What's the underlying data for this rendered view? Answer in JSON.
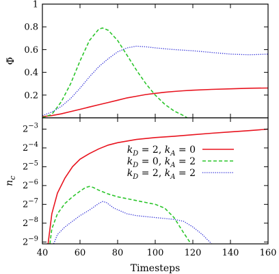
{
  "chart_data": [
    {
      "type": "line",
      "panel": "top",
      "ylabel": "Φ̄",
      "xlim": [
        40,
        160
      ],
      "ylim": [
        0,
        1
      ],
      "yticks": [
        {
          "value": 0.2,
          "label": "0.2"
        },
        {
          "value": 0.4,
          "label": "0.4"
        },
        {
          "value": 0.6,
          "label": "0.6"
        },
        {
          "value": 0.8,
          "label": "0.8"
        },
        {
          "value": 1.0,
          "label": "1"
        }
      ],
      "grid": false,
      "series": [
        {
          "color": "#e8121d",
          "style": "solid",
          "points": [
            [
              40,
              0.01
            ],
            [
              45,
              0.02
            ],
            [
              50,
              0.035
            ],
            [
              55,
              0.055
            ],
            [
              60,
              0.075
            ],
            [
              65,
              0.095
            ],
            [
              70,
              0.115
            ],
            [
              75,
              0.135
            ],
            [
              80,
              0.155
            ],
            [
              85,
              0.175
            ],
            [
              90,
              0.19
            ],
            [
              95,
              0.205
            ],
            [
              100,
              0.215
            ],
            [
              105,
              0.225
            ],
            [
              110,
              0.232
            ],
            [
              115,
              0.238
            ],
            [
              120,
              0.243
            ],
            [
              130,
              0.25
            ],
            [
              140,
              0.255
            ],
            [
              150,
              0.26
            ],
            [
              160,
              0.262
            ]
          ]
        },
        {
          "color": "#2ac52a",
          "style": "dashed",
          "points": [
            [
              40,
              0.0
            ],
            [
              45,
              0.03
            ],
            [
              50,
              0.14
            ],
            [
              55,
              0.3
            ],
            [
              60,
              0.5
            ],
            [
              65,
              0.68
            ],
            [
              70,
              0.78
            ],
            [
              72,
              0.79
            ],
            [
              75,
              0.77
            ],
            [
              80,
              0.68
            ],
            [
              85,
              0.55
            ],
            [
              90,
              0.42
            ],
            [
              95,
              0.3
            ],
            [
              100,
              0.2
            ],
            [
              105,
              0.12
            ],
            [
              110,
              0.06
            ],
            [
              115,
              0.02
            ],
            [
              117,
              0.0
            ]
          ]
        },
        {
          "color": "#2b2bd6",
          "style": "dotted",
          "points": [
            [
              40,
              0.02
            ],
            [
              45,
              0.05
            ],
            [
              50,
              0.1
            ],
            [
              55,
              0.17
            ],
            [
              60,
              0.26
            ],
            [
              65,
              0.36
            ],
            [
              70,
              0.45
            ],
            [
              75,
              0.52
            ],
            [
              80,
              0.58
            ],
            [
              85,
              0.615
            ],
            [
              90,
              0.63
            ],
            [
              95,
              0.625
            ],
            [
              100,
              0.615
            ],
            [
              110,
              0.6
            ],
            [
              120,
              0.59
            ],
            [
              130,
              0.575
            ],
            [
              140,
              0.56
            ],
            [
              150,
              0.555
            ],
            [
              160,
              0.56
            ]
          ]
        }
      ]
    },
    {
      "type": "line",
      "panel": "bottom",
      "ylabel": "n",
      "ylabel_sub": "c",
      "xlabel": "Timesteps",
      "xlim": [
        40,
        160
      ],
      "xticks": [
        40,
        60,
        80,
        100,
        120,
        140,
        160
      ],
      "ylim_exp": [
        -9.1,
        -2.4
      ],
      "yscale": "log2",
      "yticks": [
        {
          "exp": -3,
          "base": "2",
          "sup": "−3"
        },
        {
          "exp": -4,
          "base": "2",
          "sup": "−4"
        },
        {
          "exp": -5,
          "base": "2",
          "sup": "−5"
        },
        {
          "exp": -6,
          "base": "2",
          "sup": "−6"
        },
        {
          "exp": -7,
          "base": "2",
          "sup": "−7"
        },
        {
          "exp": -8,
          "base": "2",
          "sup": "−8"
        },
        {
          "exp": -9,
          "base": "2",
          "sup": "−9"
        }
      ],
      "grid": false,
      "legend_position": "top-right",
      "legend": [
        {
          "label": "k_D = 2, k_A = 0",
          "parts": [
            [
              "k",
              "D"
            ],
            [
              " = 2, "
            ],
            [
              "k",
              "A"
            ],
            [
              " = 0"
            ]
          ],
          "color": "#e8121d",
          "style": "solid"
        },
        {
          "label": "k_D = 0, k_A = 2",
          "parts": [
            [
              "k",
              "D"
            ],
            [
              " = 0, "
            ],
            [
              "k",
              "A"
            ],
            [
              " = 2"
            ]
          ],
          "color": "#2ac52a",
          "style": "dashed"
        },
        {
          "label": "k_D = 2, k_A = 2",
          "parts": [
            [
              "k",
              "D"
            ],
            [
              " = 2, "
            ],
            [
              "k",
              "A"
            ],
            [
              " = 2"
            ]
          ],
          "color": "#2b2bd6",
          "style": "dotted"
        }
      ],
      "series": [
        {
          "color": "#e8121d",
          "style": "solid",
          "points": [
            [
              43,
              -9.1
            ],
            [
              45,
              -7.5
            ],
            [
              48,
              -6.4
            ],
            [
              52,
              -5.6
            ],
            [
              56,
              -5.0
            ],
            [
              60,
              -4.6
            ],
            [
              65,
              -4.3
            ],
            [
              70,
              -4.05
            ],
            [
              75,
              -3.85
            ],
            [
              80,
              -3.72
            ],
            [
              90,
              -3.55
            ],
            [
              100,
              -3.45
            ],
            [
              110,
              -3.38
            ],
            [
              120,
              -3.3
            ],
            [
              130,
              -3.22
            ],
            [
              140,
              -3.15
            ],
            [
              150,
              -3.08
            ],
            [
              160,
              -3.0
            ]
          ]
        },
        {
          "color": "#2ac52a",
          "style": "dashed",
          "points": [
            [
              44,
              -9.1
            ],
            [
              45,
              -8.3
            ],
            [
              48,
              -7.5
            ],
            [
              52,
              -6.95
            ],
            [
              56,
              -6.6
            ],
            [
              60,
              -6.3
            ],
            [
              63,
              -6.1
            ],
            [
              65,
              -6.05
            ],
            [
              67,
              -6.1
            ],
            [
              70,
              -6.25
            ],
            [
              75,
              -6.45
            ],
            [
              80,
              -6.6
            ],
            [
              90,
              -6.8
            ],
            [
              95,
              -6.9
            ],
            [
              100,
              -7.0
            ],
            [
              105,
              -7.2
            ],
            [
              110,
              -7.7
            ],
            [
              115,
              -8.5
            ],
            [
              119,
              -9.1
            ]
          ]
        },
        {
          "color": "#2b2bd6",
          "style": "dotted",
          "points": [
            [
              46,
              -9.1
            ],
            [
              48,
              -8.6
            ],
            [
              52,
              -8.2
            ],
            [
              56,
              -7.9
            ],
            [
              60,
              -7.6
            ],
            [
              65,
              -7.3
            ],
            [
              70,
              -6.95
            ],
            [
              72,
              -6.85
            ],
            [
              74,
              -6.9
            ],
            [
              78,
              -7.2
            ],
            [
              85,
              -7.5
            ],
            [
              90,
              -7.6
            ],
            [
              100,
              -7.7
            ],
            [
              110,
              -7.8
            ],
            [
              115,
              -7.9
            ],
            [
              120,
              -8.2
            ],
            [
              125,
              -8.6
            ],
            [
              130,
              -9.1
            ]
          ]
        }
      ]
    }
  ]
}
